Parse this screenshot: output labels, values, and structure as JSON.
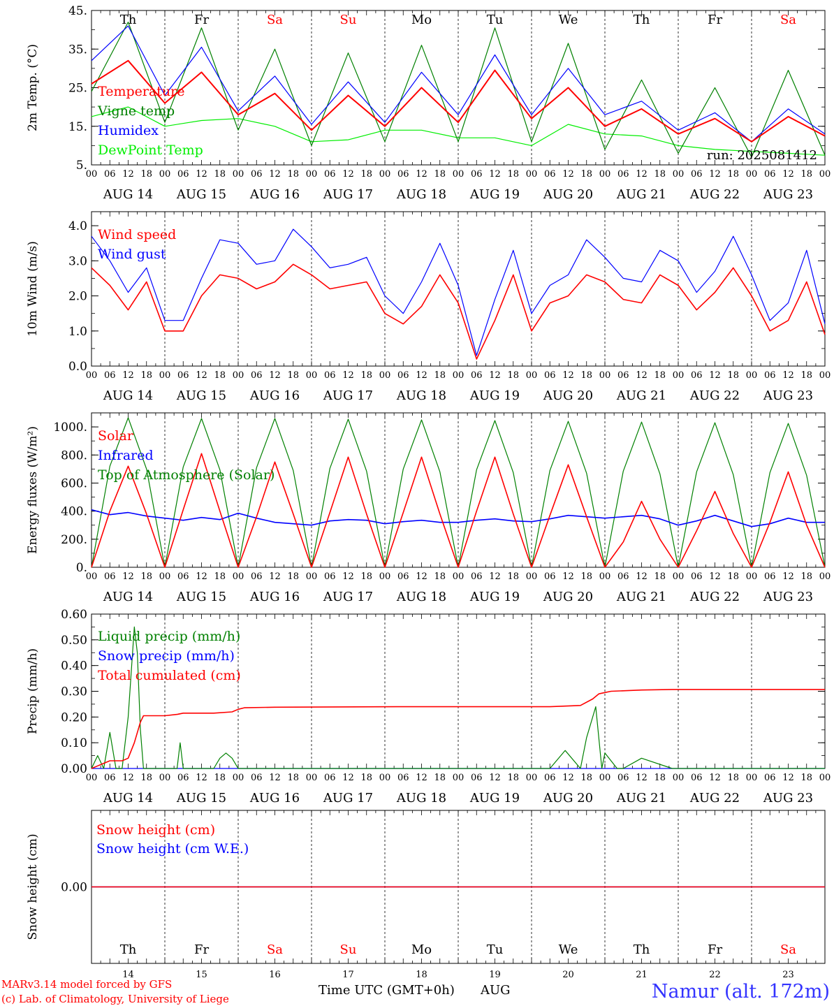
{
  "footer": {
    "credit1": "MARv3.14 model forced by GFS",
    "credit2": "(c) Lab. of Climatology, University of Liege",
    "xlabel": "Time UTC (GMT+0h)",
    "month": "AUG",
    "station": "Namur (alt. 172m)"
  },
  "run_label": "run: 2025081412",
  "dates": [
    "AUG 14",
    "AUG 15",
    "AUG 16",
    "AUG 17",
    "AUG 18",
    "AUG 19",
    "AUG 20",
    "AUG 21",
    "AUG 22",
    "AUG 23"
  ],
  "days": [
    "Th",
    "Fr",
    "Sa",
    "Su",
    "Mo",
    "Tu",
    "We",
    "Th",
    "Fr",
    "Sa"
  ],
  "day_numbers": [
    "14",
    "15",
    "16",
    "17",
    "18",
    "19",
    "20",
    "21",
    "22",
    "23"
  ],
  "weekend_color": "#ff0000",
  "hour_ticks": [
    "00",
    "06",
    "12",
    "18"
  ],
  "colors": {
    "red": "#ff0000",
    "green": "#008000",
    "blue": "#0000ff",
    "lime": "#00ee00"
  },
  "chart_data": [
    {
      "type": "line",
      "ylabel": "2m Temp. (°C)",
      "ylim": [
        5,
        45
      ],
      "yticks": [
        "5.",
        "15.",
        "25.",
        "35.",
        "45."
      ],
      "x": [
        0,
        12,
        24,
        36,
        48,
        60,
        72,
        84,
        96,
        108,
        120,
        132,
        144,
        156,
        168,
        180,
        192,
        204,
        216,
        228,
        240
      ],
      "series": [
        {
          "name": "Temperature",
          "values": [
            26,
            32,
            21,
            29,
            18,
            23.5,
            14,
            23,
            15,
            25,
            16,
            29.5,
            17,
            25,
            15,
            19.5,
            13,
            17,
            11,
            17.5,
            12.5
          ]
        },
        {
          "name": "Vigne temp",
          "values": [
            24,
            42,
            16,
            40.5,
            14,
            35,
            10,
            34,
            11,
            36,
            11,
            40.5,
            11,
            36.5,
            9,
            27,
            8,
            25,
            7,
            29.5,
            7.5
          ]
        },
        {
          "name": "Humidex",
          "values": [
            32,
            41,
            23,
            35.5,
            19,
            28,
            15.5,
            26.5,
            16,
            29,
            18,
            33.5,
            18,
            30,
            18,
            21.5,
            14,
            18.5,
            11,
            19.5,
            13
          ]
        },
        {
          "name": "DewPoint Temp",
          "values": [
            17.5,
            20,
            15,
            16.5,
            17,
            15,
            11,
            11.5,
            14,
            14,
            12,
            12,
            10,
            15.5,
            13,
            12.5,
            10,
            9,
            8.5,
            8,
            7.5
          ]
        }
      ]
    },
    {
      "type": "line",
      "ylabel": "10m Wind (m/s)",
      "ylim": [
        0,
        4.4
      ],
      "yticks": [
        "0.0",
        "1.0",
        "2.0",
        "3.0",
        "4.0"
      ],
      "x": [
        0,
        6,
        12,
        18,
        24,
        30,
        36,
        42,
        48,
        54,
        60,
        66,
        72,
        78,
        84,
        90,
        96,
        102,
        108,
        114,
        120,
        126,
        132,
        138,
        144,
        150,
        156,
        162,
        168,
        174,
        180,
        186,
        192,
        198,
        204,
        210,
        216,
        222,
        228,
        234,
        240
      ],
      "series": [
        {
          "name": "Wind speed",
          "values": [
            2.8,
            2.3,
            1.6,
            2.4,
            1.0,
            1.0,
            2.0,
            2.6,
            2.5,
            2.2,
            2.4,
            2.9,
            2.6,
            2.2,
            2.3,
            2.4,
            1.5,
            1.2,
            1.7,
            2.6,
            1.8,
            0.2,
            1.3,
            2.6,
            1.0,
            1.8,
            2.0,
            2.6,
            2.4,
            1.9,
            1.8,
            2.6,
            2.3,
            1.6,
            2.1,
            2.8,
            2.0,
            1.0,
            1.3,
            2.4,
            0.9
          ]
        },
        {
          "name": "Wind gust",
          "values": [
            3.7,
            3.0,
            2.1,
            2.8,
            1.3,
            1.3,
            2.5,
            3.6,
            3.5,
            2.9,
            3.0,
            3.9,
            3.4,
            2.8,
            2.9,
            3.1,
            2.0,
            1.5,
            2.4,
            3.5,
            2.3,
            0.3,
            1.9,
            3.3,
            1.5,
            2.3,
            2.6,
            3.6,
            3.1,
            2.5,
            2.4,
            3.3,
            3.0,
            2.1,
            2.7,
            3.7,
            2.6,
            1.3,
            1.8,
            3.3,
            1.2
          ]
        }
      ]
    },
    {
      "type": "line",
      "ylabel": "Energy fluxes (W/m²)",
      "ylim": [
        0,
        1100
      ],
      "yticks": [
        "0.",
        "200.",
        "400.",
        "600.",
        "800.",
        "1000."
      ],
      "x": [
        0,
        6,
        12,
        18,
        24,
        30,
        36,
        42,
        48,
        54,
        60,
        66,
        72,
        78,
        84,
        90,
        96,
        102,
        108,
        114,
        120,
        126,
        132,
        138,
        144,
        150,
        156,
        162,
        168,
        174,
        180,
        186,
        192,
        198,
        204,
        210,
        216,
        222,
        228,
        234,
        240
      ],
      "series": [
        {
          "name": "Solar",
          "values": [
            0,
            400,
            720,
            380,
            0,
            410,
            810,
            400,
            0,
            360,
            750,
            380,
            0,
            390,
            785,
            380,
            0,
            390,
            785,
            380,
            0,
            400,
            785,
            380,
            0,
            370,
            730,
            360,
            0,
            180,
            470,
            200,
            0,
            260,
            540,
            240,
            0,
            320,
            680,
            300,
            0
          ]
        },
        {
          "name": "Infrared",
          "values": [
            410,
            375,
            390,
            365,
            350,
            335,
            355,
            340,
            385,
            350,
            320,
            310,
            300,
            330,
            340,
            335,
            310,
            325,
            335,
            320,
            320,
            335,
            345,
            330,
            325,
            345,
            370,
            360,
            350,
            360,
            370,
            345,
            300,
            330,
            370,
            330,
            290,
            310,
            350,
            320,
            320
          ]
        },
        {
          "name": "Top of Atmosphere (Solar)",
          "values": [
            0,
            720,
            1065,
            700,
            0,
            715,
            1060,
            695,
            0,
            710,
            1060,
            690,
            0,
            705,
            1055,
            685,
            0,
            700,
            1050,
            680,
            0,
            695,
            1045,
            675,
            0,
            690,
            1040,
            670,
            0,
            685,
            1035,
            665,
            0,
            680,
            1030,
            660,
            0,
            675,
            1025,
            655,
            0
          ]
        }
      ]
    },
    {
      "type": "line",
      "ylabel": "Precip (mm/h)",
      "ylim": [
        0,
        0.6
      ],
      "yticks": [
        "0.00",
        "0.10",
        "0.20",
        "0.30",
        "0.40",
        "0.50",
        "0.60"
      ],
      "series": [
        {
          "name": "Liquid precip (mm/h)",
          "x": [
            0,
            2,
            4,
            6,
            8,
            10,
            12,
            14,
            15,
            16,
            17,
            18,
            20,
            24,
            28,
            29,
            30,
            32,
            40,
            42,
            44,
            46,
            48,
            50,
            60,
            90,
            100,
            150,
            155,
            160,
            162,
            165,
            167,
            168,
            170,
            172,
            174,
            180,
            190,
            240
          ],
          "values": [
            0,
            0.05,
            0,
            0.14,
            0,
            0,
            0.2,
            0.55,
            0.45,
            0.15,
            0,
            0,
            0,
            0,
            0,
            0.1,
            0,
            0,
            0,
            0.04,
            0.06,
            0.04,
            0,
            0,
            0,
            0,
            0,
            0,
            0.07,
            0,
            0.12,
            0.24,
            0,
            0.06,
            0.03,
            0,
            0,
            0.04,
            0,
            0
          ]
        },
        {
          "name": "Snow precip (mm/h)",
          "x": [
            0,
            240
          ],
          "values": [
            0,
            0
          ]
        },
        {
          "name": "Total cumulated (cm)",
          "x": [
            0,
            2,
            4,
            6,
            10,
            12,
            14,
            16,
            17,
            18,
            24,
            28,
            30,
            32,
            40,
            46,
            48,
            50,
            60,
            100,
            150,
            160,
            164,
            166,
            168,
            170,
            180,
            190,
            200,
            240
          ],
          "values": [
            0,
            0.01,
            0.02,
            0.03,
            0.03,
            0.04,
            0.1,
            0.18,
            0.205,
            0.205,
            0.205,
            0.21,
            0.215,
            0.215,
            0.215,
            0.22,
            0.23,
            0.236,
            0.238,
            0.24,
            0.24,
            0.245,
            0.27,
            0.29,
            0.295,
            0.3,
            0.305,
            0.307,
            0.307,
            0.307
          ]
        }
      ]
    },
    {
      "type": "line",
      "ylabel": "Snow height (cm)",
      "ylim": [
        -1,
        1
      ],
      "yticks": [
        "0.00"
      ],
      "series": [
        {
          "name": "Snow height (cm)",
          "x": [
            0,
            240
          ],
          "values": [
            0,
            0
          ]
        },
        {
          "name": "Snow height (cm W.E.)",
          "x": [
            0,
            240
          ],
          "values": [
            0,
            0
          ]
        }
      ]
    }
  ]
}
